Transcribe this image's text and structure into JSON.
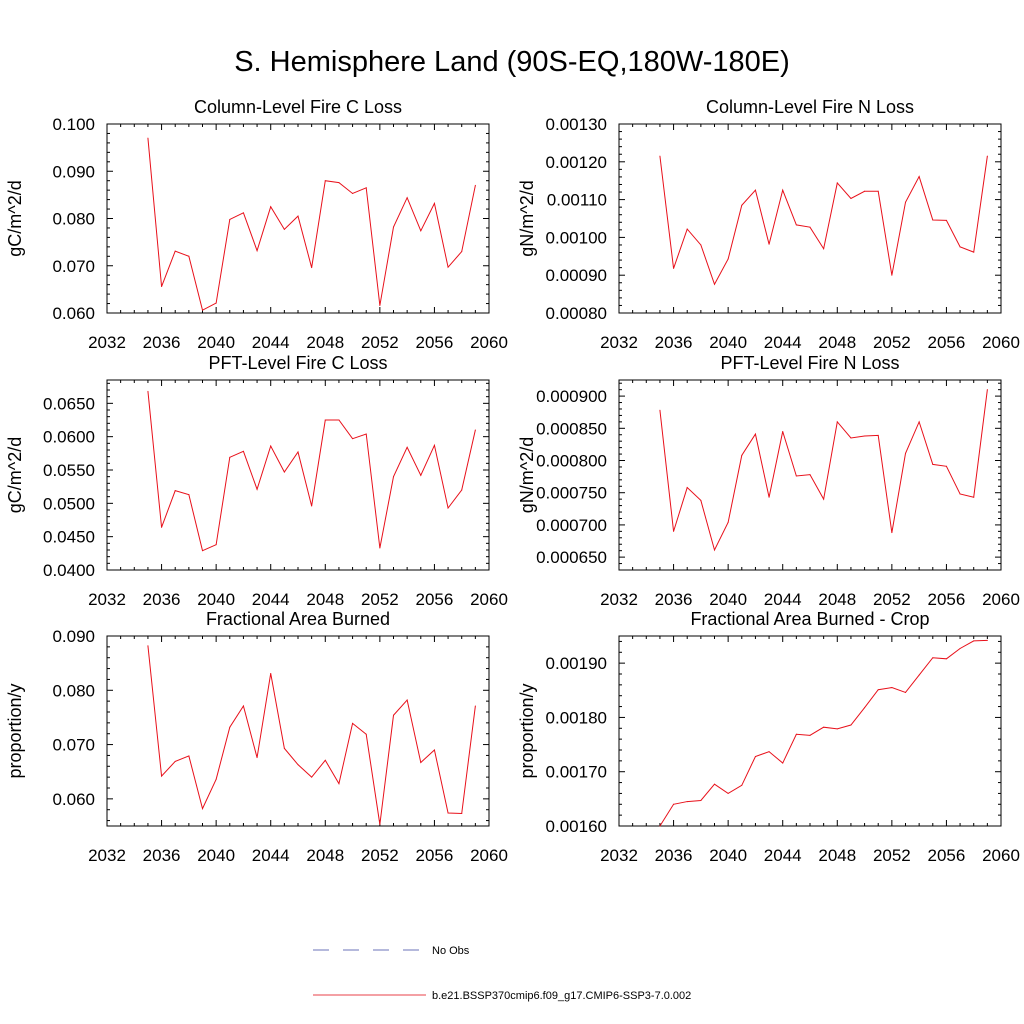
{
  "page": {
    "title": "S. Hemisphere Land (90S-EQ,180W-180E)"
  },
  "legend": {
    "entries": [
      {
        "label": "No Obs",
        "style": "dashed",
        "color": "#6b73b8"
      },
      {
        "label": "b.e21.BSSP370cmip6.f09_g17.CMIP6-SSP3-7.0.002",
        "style": "solid",
        "color": "#e8404a"
      }
    ]
  },
  "chart_data": [
    {
      "type": "line",
      "title": "Column-Level Fire C Loss",
      "ylabel": "gC/m^2/d",
      "xlim": [
        2032,
        2060
      ],
      "xticks": [
        "2032",
        "2036",
        "2040",
        "2044",
        "2048",
        "2052",
        "2056",
        "2060"
      ],
      "ylim": [
        0.06,
        0.1
      ],
      "yticks": [
        "0.060",
        "0.070",
        "0.080",
        "0.090",
        "0.100"
      ],
      "series": [
        {
          "name": "b.e21.BSSP370cmip6.f09_g17.CMIP6-SSP3-7.0.002",
          "color": "#e8101a",
          "x": [
            2035,
            2036,
            2037,
            2038,
            2039,
            2040,
            2041,
            2042,
            2043,
            2044,
            2045,
            2046,
            2047,
            2048,
            2049,
            2050,
            2051,
            2052,
            2053,
            2054,
            2055,
            2056,
            2057,
            2058,
            2059
          ],
          "y": [
            0.097,
            0.0656,
            0.0731,
            0.072,
            0.0606,
            0.0621,
            0.0798,
            0.0812,
            0.0732,
            0.0825,
            0.0777,
            0.0805,
            0.0696,
            0.088,
            0.0876,
            0.0853,
            0.0865,
            0.0616,
            0.0782,
            0.0844,
            0.0774,
            0.0832,
            0.0697,
            0.073,
            0.087
          ]
        }
      ]
    },
    {
      "type": "line",
      "title": "Column-Level Fire N Loss",
      "ylabel": "gN/m^2/d",
      "xlim": [
        2032,
        2060
      ],
      "xticks": [
        "2032",
        "2036",
        "2040",
        "2044",
        "2048",
        "2052",
        "2056",
        "2060"
      ],
      "ylim": [
        0.0008,
        0.0013
      ],
      "yticks": [
        "0.00080",
        "0.00090",
        "0.00100",
        "0.00110",
        "0.00120",
        "0.00130"
      ],
      "series": [
        {
          "name": "b.e21.BSSP370cmip6.f09_g17.CMIP6-SSP3-7.0.002",
          "color": "#e8101a",
          "x": [
            2035,
            2036,
            2037,
            2038,
            2039,
            2040,
            2041,
            2042,
            2043,
            2044,
            2045,
            2046,
            2047,
            2048,
            2049,
            2050,
            2051,
            2052,
            2053,
            2054,
            2055,
            2056,
            2057,
            2058,
            2059
          ],
          "y": [
            0.001215,
            0.000918,
            0.001022,
            0.00098,
            0.000876,
            0.000943,
            0.001085,
            0.001125,
            0.000982,
            0.001125,
            0.001033,
            0.001027,
            0.00097,
            0.001144,
            0.001103,
            0.001122,
            0.001122,
            0.0009,
            0.001093,
            0.001161,
            0.001046,
            0.001045,
            0.000975,
            0.000961,
            0.001215
          ]
        }
      ]
    },
    {
      "type": "line",
      "title": "PFT-Level Fire C Loss",
      "ylabel": "gC/m^2/d",
      "xlim": [
        2032,
        2060
      ],
      "xticks": [
        "2032",
        "2036",
        "2040",
        "2044",
        "2048",
        "2052",
        "2056",
        "2060"
      ],
      "ylim": [
        0.04,
        0.0685
      ],
      "yticks": [
        "0.0400",
        "0.0450",
        "0.0500",
        "0.0550",
        "0.0600",
        "0.0650"
      ],
      "series": [
        {
          "name": "b.e21.BSSP370cmip6.f09_g17.CMIP6-SSP3-7.0.002",
          "color": "#e8101a",
          "x": [
            2035,
            2036,
            2037,
            2038,
            2039,
            2040,
            2041,
            2042,
            2043,
            2044,
            2045,
            2046,
            2047,
            2048,
            2049,
            2050,
            2051,
            2052,
            2053,
            2054,
            2055,
            2056,
            2057,
            2058,
            2059
          ],
          "y": [
            0.0668,
            0.0464,
            0.0519,
            0.0513,
            0.0429,
            0.0438,
            0.0569,
            0.0578,
            0.0521,
            0.0586,
            0.0547,
            0.0577,
            0.0496,
            0.0625,
            0.0625,
            0.0597,
            0.0604,
            0.0433,
            0.054,
            0.0584,
            0.0542,
            0.0587,
            0.0493,
            0.052,
            0.061
          ]
        }
      ]
    },
    {
      "type": "line",
      "title": "PFT-Level Fire N Loss",
      "ylabel": "gN/m^2/d",
      "xlim": [
        2032,
        2060
      ],
      "xticks": [
        "2032",
        "2036",
        "2040",
        "2044",
        "2048",
        "2052",
        "2056",
        "2060"
      ],
      "ylim": [
        0.00063,
        0.000925
      ],
      "yticks": [
        "0.000650",
        "0.000700",
        "0.000750",
        "0.000800",
        "0.000850",
        "0.000900"
      ],
      "series": [
        {
          "name": "b.e21.BSSP370cmip6.f09_g17.CMIP6-SSP3-7.0.002",
          "color": "#e8101a",
          "x": [
            2035,
            2036,
            2037,
            2038,
            2039,
            2040,
            2041,
            2042,
            2043,
            2044,
            2045,
            2046,
            2047,
            2048,
            2049,
            2050,
            2051,
            2052,
            2053,
            2054,
            2055,
            2056,
            2057,
            2058,
            2059
          ],
          "y": [
            0.000878,
            0.00069,
            0.000758,
            0.000738,
            0.000661,
            0.000704,
            0.000808,
            0.000841,
            0.000743,
            0.000845,
            0.000776,
            0.000778,
            0.00074,
            0.00086,
            0.000835,
            0.000838,
            0.000839,
            0.000688,
            0.000811,
            0.00086,
            0.000794,
            0.000791,
            0.000748,
            0.000743,
            0.00091
          ]
        }
      ]
    },
    {
      "type": "line",
      "title": "Fractional Area Burned",
      "ylabel": "proportion/y",
      "xlim": [
        2032,
        2060
      ],
      "xticks": [
        "2032",
        "2036",
        "2040",
        "2044",
        "2048",
        "2052",
        "2056",
        "2060"
      ],
      "ylim": [
        0.055,
        0.09
      ],
      "yticks": [
        "0.060",
        "0.070",
        "0.080",
        "0.090"
      ],
      "series": [
        {
          "name": "b.e21.BSSP370cmip6.f09_g17.CMIP6-SSP3-7.0.002",
          "color": "#e8101a",
          "x": [
            2035,
            2036,
            2037,
            2038,
            2039,
            2040,
            2041,
            2042,
            2043,
            2044,
            2045,
            2046,
            2047,
            2048,
            2049,
            2050,
            2051,
            2052,
            2053,
            2054,
            2055,
            2056,
            2057,
            2058,
            2059
          ],
          "y": [
            0.0882,
            0.0642,
            0.0669,
            0.0679,
            0.0582,
            0.0636,
            0.0732,
            0.0771,
            0.0676,
            0.0831,
            0.0693,
            0.0663,
            0.064,
            0.0671,
            0.0628,
            0.0739,
            0.0719,
            0.0553,
            0.0754,
            0.0782,
            0.0667,
            0.069,
            0.0574,
            0.0573,
            0.0771
          ]
        }
      ]
    },
    {
      "type": "line",
      "title": "Fractional Area Burned - Crop",
      "ylabel": "proportion/y",
      "xlim": [
        2032,
        2060
      ],
      "xticks": [
        "2032",
        "2036",
        "2040",
        "2044",
        "2048",
        "2052",
        "2056",
        "2060"
      ],
      "ylim": [
        0.0016,
        0.00195
      ],
      "yticks": [
        "0.00160",
        "0.00170",
        "0.00180",
        "0.00190"
      ],
      "series": [
        {
          "name": "b.e21.BSSP370cmip6.f09_g17.CMIP6-SSP3-7.0.002",
          "color": "#e8101a",
          "x": [
            2035,
            2036,
            2037,
            2038,
            2039,
            2040,
            2041,
            2042,
            2043,
            2044,
            2045,
            2046,
            2047,
            2048,
            2049,
            2050,
            2051,
            2052,
            2053,
            2054,
            2055,
            2056,
            2057,
            2058,
            2059
          ],
          "y": [
            0.0016,
            0.00164,
            0.001645,
            0.001647,
            0.001677,
            0.00166,
            0.001675,
            0.001728,
            0.001737,
            0.001716,
            0.001769,
            0.001767,
            0.001782,
            0.001779,
            0.001786,
            0.001818,
            0.001851,
            0.001855,
            0.001846,
            0.001878,
            0.00191,
            0.001908,
            0.001927,
            0.001941,
            0.001942
          ]
        }
      ]
    }
  ]
}
